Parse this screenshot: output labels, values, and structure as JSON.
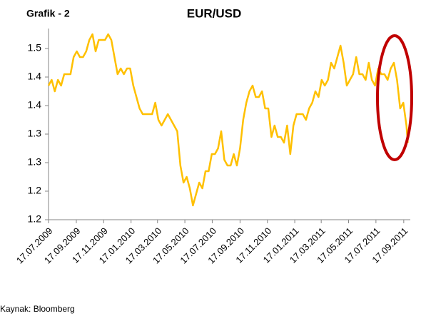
{
  "chart_data": {
    "type": "line",
    "title": "EUR/USD",
    "label": "Grafik - 2",
    "source": "Kaynak: Bloomberg",
    "x": [
      "2009-07-17",
      "2009-07-24",
      "2009-07-31",
      "2009-08-07",
      "2009-08-14",
      "2009-08-21",
      "2009-08-28",
      "2009-09-04",
      "2009-09-11",
      "2009-09-18",
      "2009-09-25",
      "2009-10-02",
      "2009-10-09",
      "2009-10-16",
      "2009-10-23",
      "2009-10-30",
      "2009-11-06",
      "2009-11-13",
      "2009-11-20",
      "2009-11-27",
      "2009-12-04",
      "2009-12-11",
      "2009-12-18",
      "2009-12-25",
      "2010-01-01",
      "2010-01-08",
      "2010-01-15",
      "2010-01-22",
      "2010-01-29",
      "2010-02-05",
      "2010-02-12",
      "2010-02-19",
      "2010-02-26",
      "2010-03-05",
      "2010-03-12",
      "2010-03-19",
      "2010-03-26",
      "2010-04-02",
      "2010-04-09",
      "2010-04-16",
      "2010-04-23",
      "2010-04-30",
      "2010-05-07",
      "2010-05-14",
      "2010-05-21",
      "2010-05-28",
      "2010-06-04",
      "2010-06-11",
      "2010-06-18",
      "2010-06-25",
      "2010-07-02",
      "2010-07-09",
      "2010-07-16",
      "2010-07-23",
      "2010-07-30",
      "2010-08-06",
      "2010-08-13",
      "2010-08-20",
      "2010-08-27",
      "2010-09-03",
      "2010-09-10",
      "2010-09-17",
      "2010-09-24",
      "2010-10-01",
      "2010-10-08",
      "2010-10-15",
      "2010-10-22",
      "2010-10-29",
      "2010-11-05",
      "2010-11-12",
      "2010-11-19",
      "2010-11-26",
      "2010-12-03",
      "2010-12-10",
      "2010-12-17",
      "2010-12-24",
      "2010-12-31",
      "2011-01-07",
      "2011-01-14",
      "2011-01-21",
      "2011-01-28",
      "2011-02-04",
      "2011-02-11",
      "2011-02-18",
      "2011-02-25",
      "2011-03-04",
      "2011-03-11",
      "2011-03-18",
      "2011-03-25",
      "2011-04-01",
      "2011-04-08",
      "2011-04-15",
      "2011-04-22",
      "2011-04-29",
      "2011-05-06",
      "2011-05-13",
      "2011-05-20",
      "2011-05-27",
      "2011-06-03",
      "2011-06-10",
      "2011-06-17",
      "2011-06-24",
      "2011-07-01",
      "2011-07-08",
      "2011-07-15",
      "2011-07-22",
      "2011-07-29",
      "2011-08-05",
      "2011-08-12",
      "2011-08-19",
      "2011-08-26",
      "2011-09-02",
      "2011-09-09",
      "2011-09-16",
      "2011-09-23",
      "2011-09-26"
    ],
    "series": [
      {
        "name": "EUR/USD",
        "color": "#ffc000",
        "values": [
          1.41,
          1.42,
          1.4,
          1.42,
          1.41,
          1.43,
          1.43,
          1.43,
          1.46,
          1.47,
          1.46,
          1.46,
          1.47,
          1.49,
          1.5,
          1.47,
          1.49,
          1.49,
          1.49,
          1.5,
          1.49,
          1.46,
          1.43,
          1.44,
          1.43,
          1.44,
          1.44,
          1.41,
          1.39,
          1.37,
          1.36,
          1.36,
          1.36,
          1.36,
          1.38,
          1.35,
          1.34,
          1.35,
          1.36,
          1.35,
          1.34,
          1.33,
          1.27,
          1.24,
          1.25,
          1.23,
          1.2,
          1.22,
          1.24,
          1.23,
          1.26,
          1.26,
          1.29,
          1.29,
          1.3,
          1.33,
          1.28,
          1.27,
          1.27,
          1.29,
          1.27,
          1.3,
          1.35,
          1.38,
          1.4,
          1.41,
          1.39,
          1.39,
          1.4,
          1.37,
          1.37,
          1.32,
          1.34,
          1.32,
          1.32,
          1.31,
          1.34,
          1.29,
          1.34,
          1.36,
          1.36,
          1.36,
          1.35,
          1.37,
          1.38,
          1.4,
          1.39,
          1.42,
          1.41,
          1.42,
          1.45,
          1.44,
          1.46,
          1.48,
          1.45,
          1.41,
          1.42,
          1.43,
          1.46,
          1.43,
          1.43,
          1.42,
          1.45,
          1.42,
          1.41,
          1.44,
          1.43,
          1.43,
          1.42,
          1.44,
          1.45,
          1.42,
          1.37,
          1.38,
          1.34,
          1.31
        ]
      }
    ],
    "xlim": [
      "2009-07-17",
      "2011-09-30"
    ],
    "xticks": [
      {
        "value": "2009-07-17",
        "label": "17.07.2009"
      },
      {
        "value": "2009-09-17",
        "label": "17.09.2009"
      },
      {
        "value": "2009-11-17",
        "label": "17.11.2009"
      },
      {
        "value": "2010-01-17",
        "label": "17.01.2010"
      },
      {
        "value": "2010-03-17",
        "label": "17.03.2010"
      },
      {
        "value": "2010-05-17",
        "label": "17.05.2010"
      },
      {
        "value": "2010-07-17",
        "label": "17.07.2010"
      },
      {
        "value": "2010-09-17",
        "label": "17.09.2010"
      },
      {
        "value": "2010-11-17",
        "label": "17.11.2010"
      },
      {
        "value": "2011-01-17",
        "label": "17.01.2011"
      },
      {
        "value": "2011-03-17",
        "label": "17.03.2011"
      },
      {
        "value": "2011-05-17",
        "label": "17.05.2011"
      },
      {
        "value": "2011-07-17",
        "label": "17.07.2011"
      },
      {
        "value": "2011-09-17",
        "label": "17.09.2011"
      }
    ],
    "ylim": [
      1.175,
      1.515
    ],
    "yticks": [
      {
        "value": 1.175,
        "label": "1.2"
      },
      {
        "value": 1.225,
        "label": "1.2"
      },
      {
        "value": 1.275,
        "label": "1.3"
      },
      {
        "value": 1.325,
        "label": "1.3"
      },
      {
        "value": 1.375,
        "label": "1.4"
      },
      {
        "value": 1.425,
        "label": "1.4"
      },
      {
        "value": 1.475,
        "label": "1.5"
      }
    ],
    "grid": false
  }
}
